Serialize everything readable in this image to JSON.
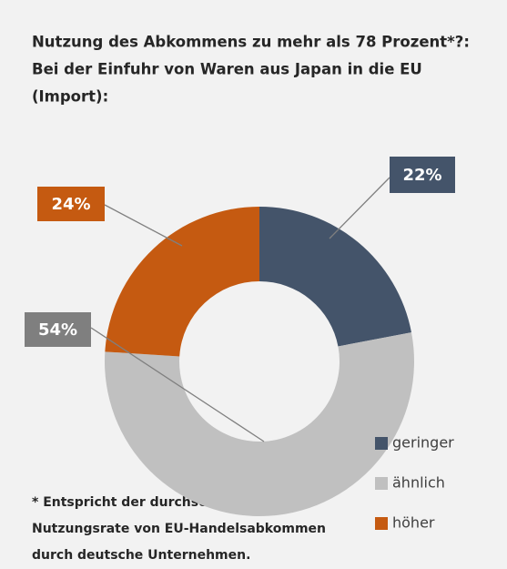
{
  "chart_data": {
    "type": "pie",
    "title": [
      "Nutzung des Abkommens zu mehr als 78 Prozent*?:",
      "Bei der Einfuhr von Waren aus Japan in die EU",
      "(Import):"
    ],
    "categories": [
      "geringer",
      "ähnlich",
      "höher"
    ],
    "values": [
      22,
      54,
      24
    ],
    "value_labels": [
      "22%",
      "54%",
      "24%"
    ],
    "colors": [
      "#44546a",
      "#c0c0c0",
      "#c55a11"
    ],
    "footnote": [
      "* Entspricht der durchschnittlichen",
      "Nutzungsrate von EU-Handelsabkommen",
      "durch deutsche Unternehmen."
    ]
  }
}
